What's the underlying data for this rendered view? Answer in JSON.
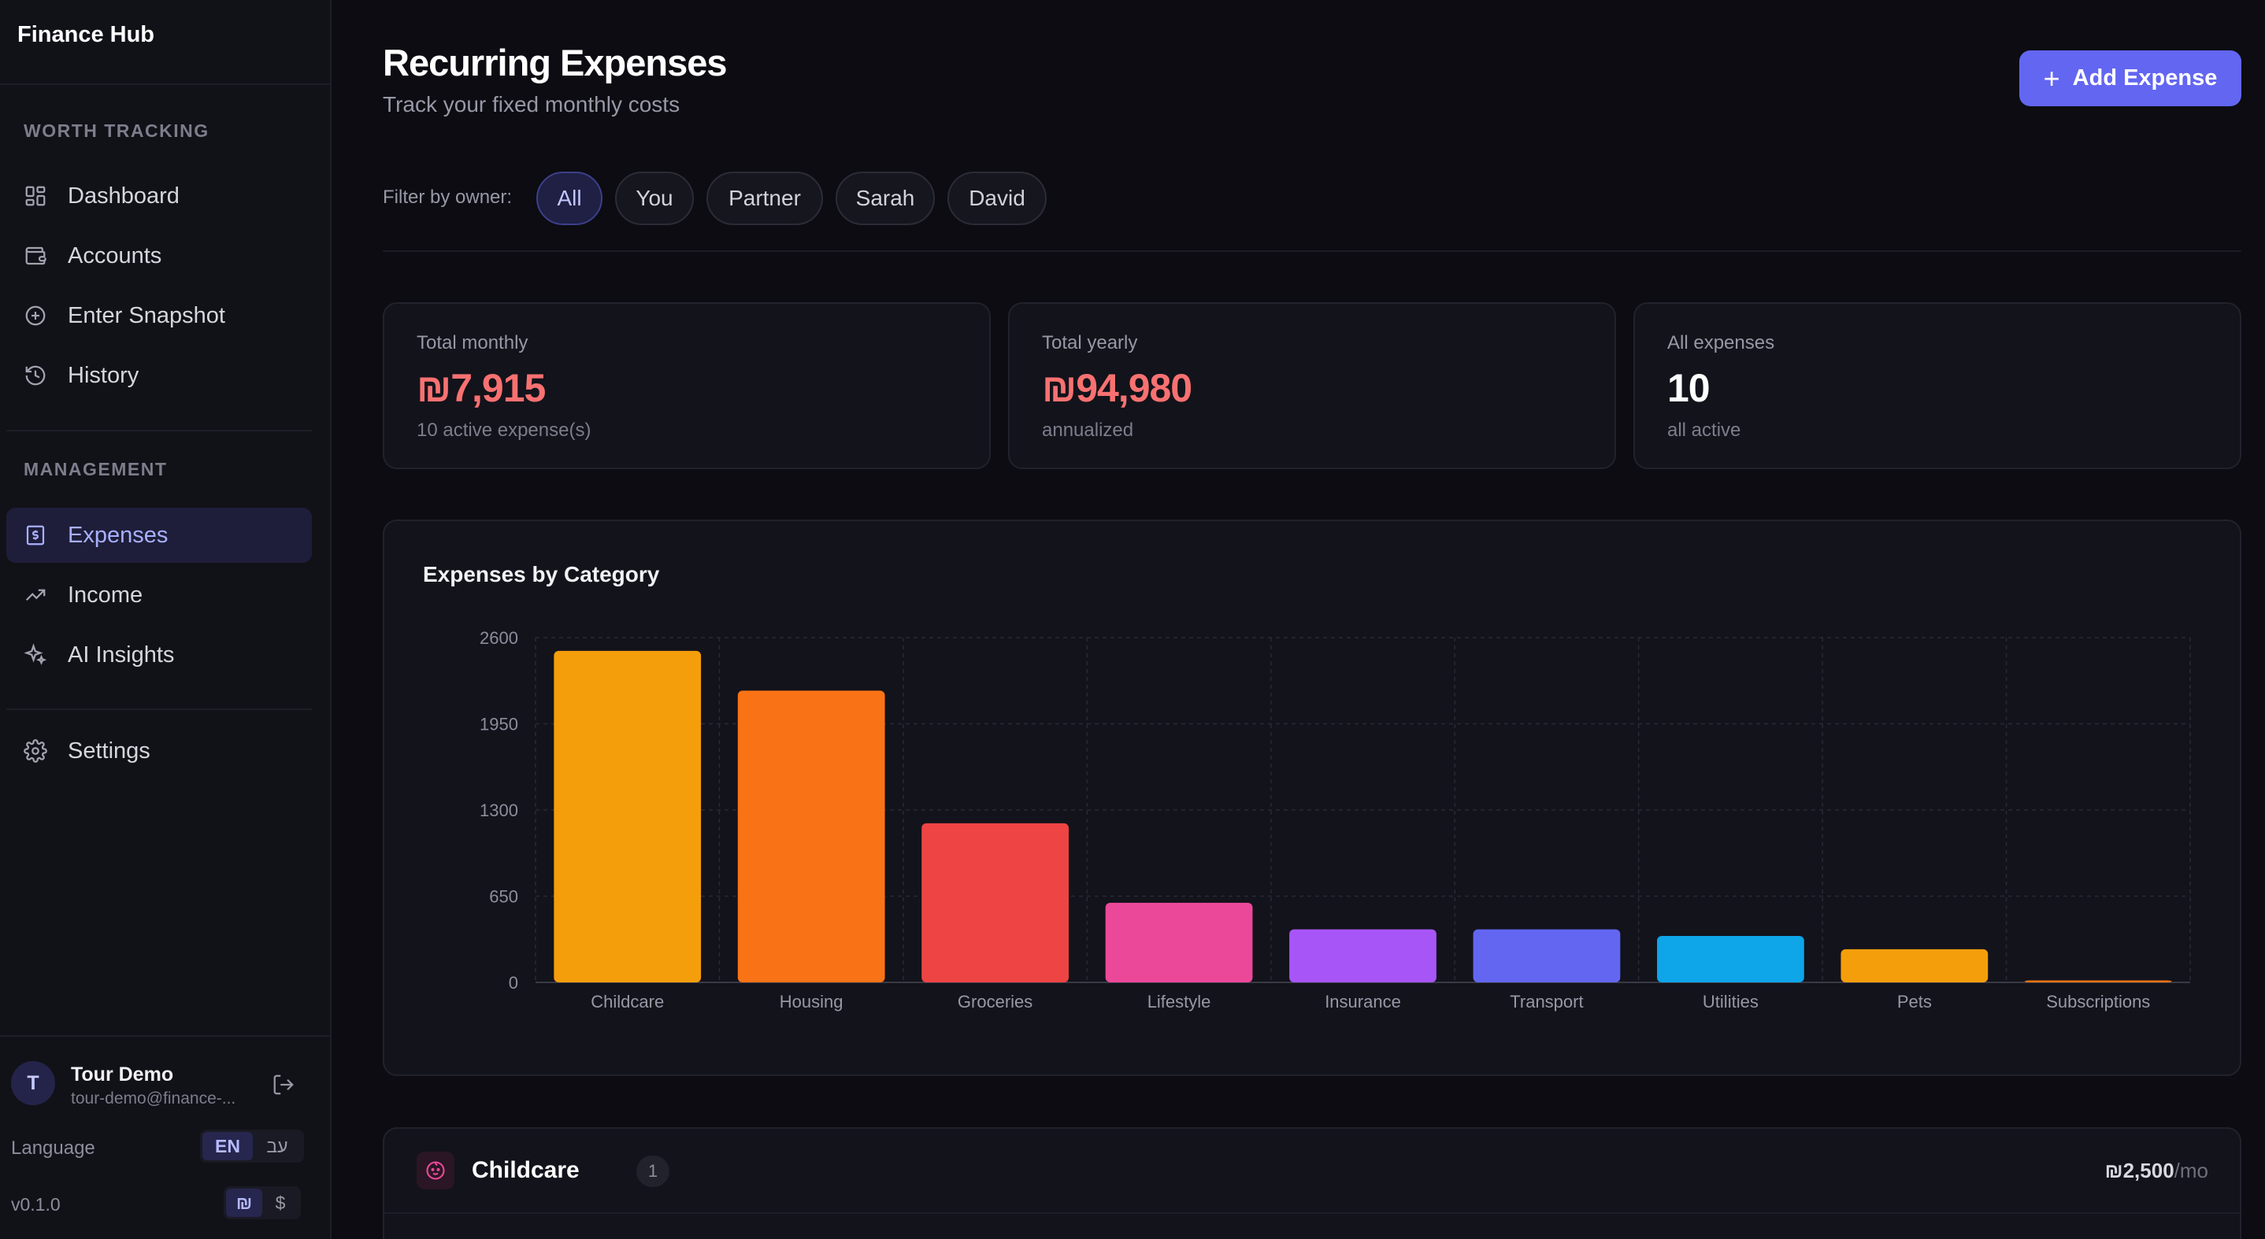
{
  "app": {
    "title": "Finance Hub"
  },
  "sidebar": {
    "sections": [
      {
        "label": "WORTH TRACKING",
        "items": [
          {
            "label": "Dashboard",
            "icon": "dashboard-icon"
          },
          {
            "label": "Accounts",
            "icon": "wallet-icon"
          },
          {
            "label": "Enter Snapshot",
            "icon": "plus-circle-icon"
          },
          {
            "label": "History",
            "icon": "history-icon"
          }
        ]
      },
      {
        "label": "MANAGEMENT",
        "items": [
          {
            "label": "Expenses",
            "icon": "receipt-dollar-icon",
            "active": true
          },
          {
            "label": "Income",
            "icon": "trending-up-icon"
          },
          {
            "label": "AI Insights",
            "icon": "sparkles-icon"
          }
        ]
      },
      {
        "label": "",
        "items": [
          {
            "label": "Settings",
            "icon": "gear-icon"
          }
        ]
      }
    ],
    "user": {
      "initial": "T",
      "name": "Tour Demo",
      "email": "tour-demo@finance-..."
    },
    "language": {
      "label": "Language",
      "options": [
        "EN",
        "עב"
      ],
      "selected": "EN"
    },
    "currency": {
      "options": [
        "₪",
        "$"
      ],
      "selected": "₪"
    },
    "version": "v0.1.0"
  },
  "header": {
    "title": "Recurring Expenses",
    "subtitle": "Track your fixed monthly costs",
    "add_button": "Add Expense"
  },
  "filter": {
    "label": "Filter by owner:",
    "options": [
      "All",
      "You",
      "Partner",
      "Sarah",
      "David"
    ],
    "selected": "All"
  },
  "stats": [
    {
      "label": "Total monthly",
      "value": "₪7,915",
      "note": "10 active expense(s)",
      "color": "#f87171"
    },
    {
      "label": "Total yearly",
      "value": "₪94,980",
      "note": "annualized",
      "color": "#f87171"
    },
    {
      "label": "All expenses",
      "value": "10",
      "note": "all active",
      "color": "#ffffff"
    }
  ],
  "chart_title": "Expenses by Category",
  "chart_data": {
    "type": "bar",
    "categories": [
      "Childcare",
      "Housing",
      "Groceries",
      "Lifestyle",
      "Insurance",
      "Transport",
      "Utilities",
      "Pets",
      "Subscriptions"
    ],
    "values": [
      2500,
      2200,
      1200,
      600,
      400,
      400,
      350,
      250,
      15
    ],
    "colors": [
      "#f59e0b",
      "#f97316",
      "#ef4444",
      "#ec4899",
      "#a855f7",
      "#6366f1",
      "#0ea5e9",
      "#f59e0b",
      "#f97316"
    ],
    "yticks": [
      0,
      650,
      1300,
      1950,
      2600
    ],
    "ylim": [
      0,
      2600
    ],
    "grid": true
  },
  "group": {
    "name": "Childcare",
    "count": "1",
    "amount": "₪2,500",
    "per": "/mo"
  }
}
